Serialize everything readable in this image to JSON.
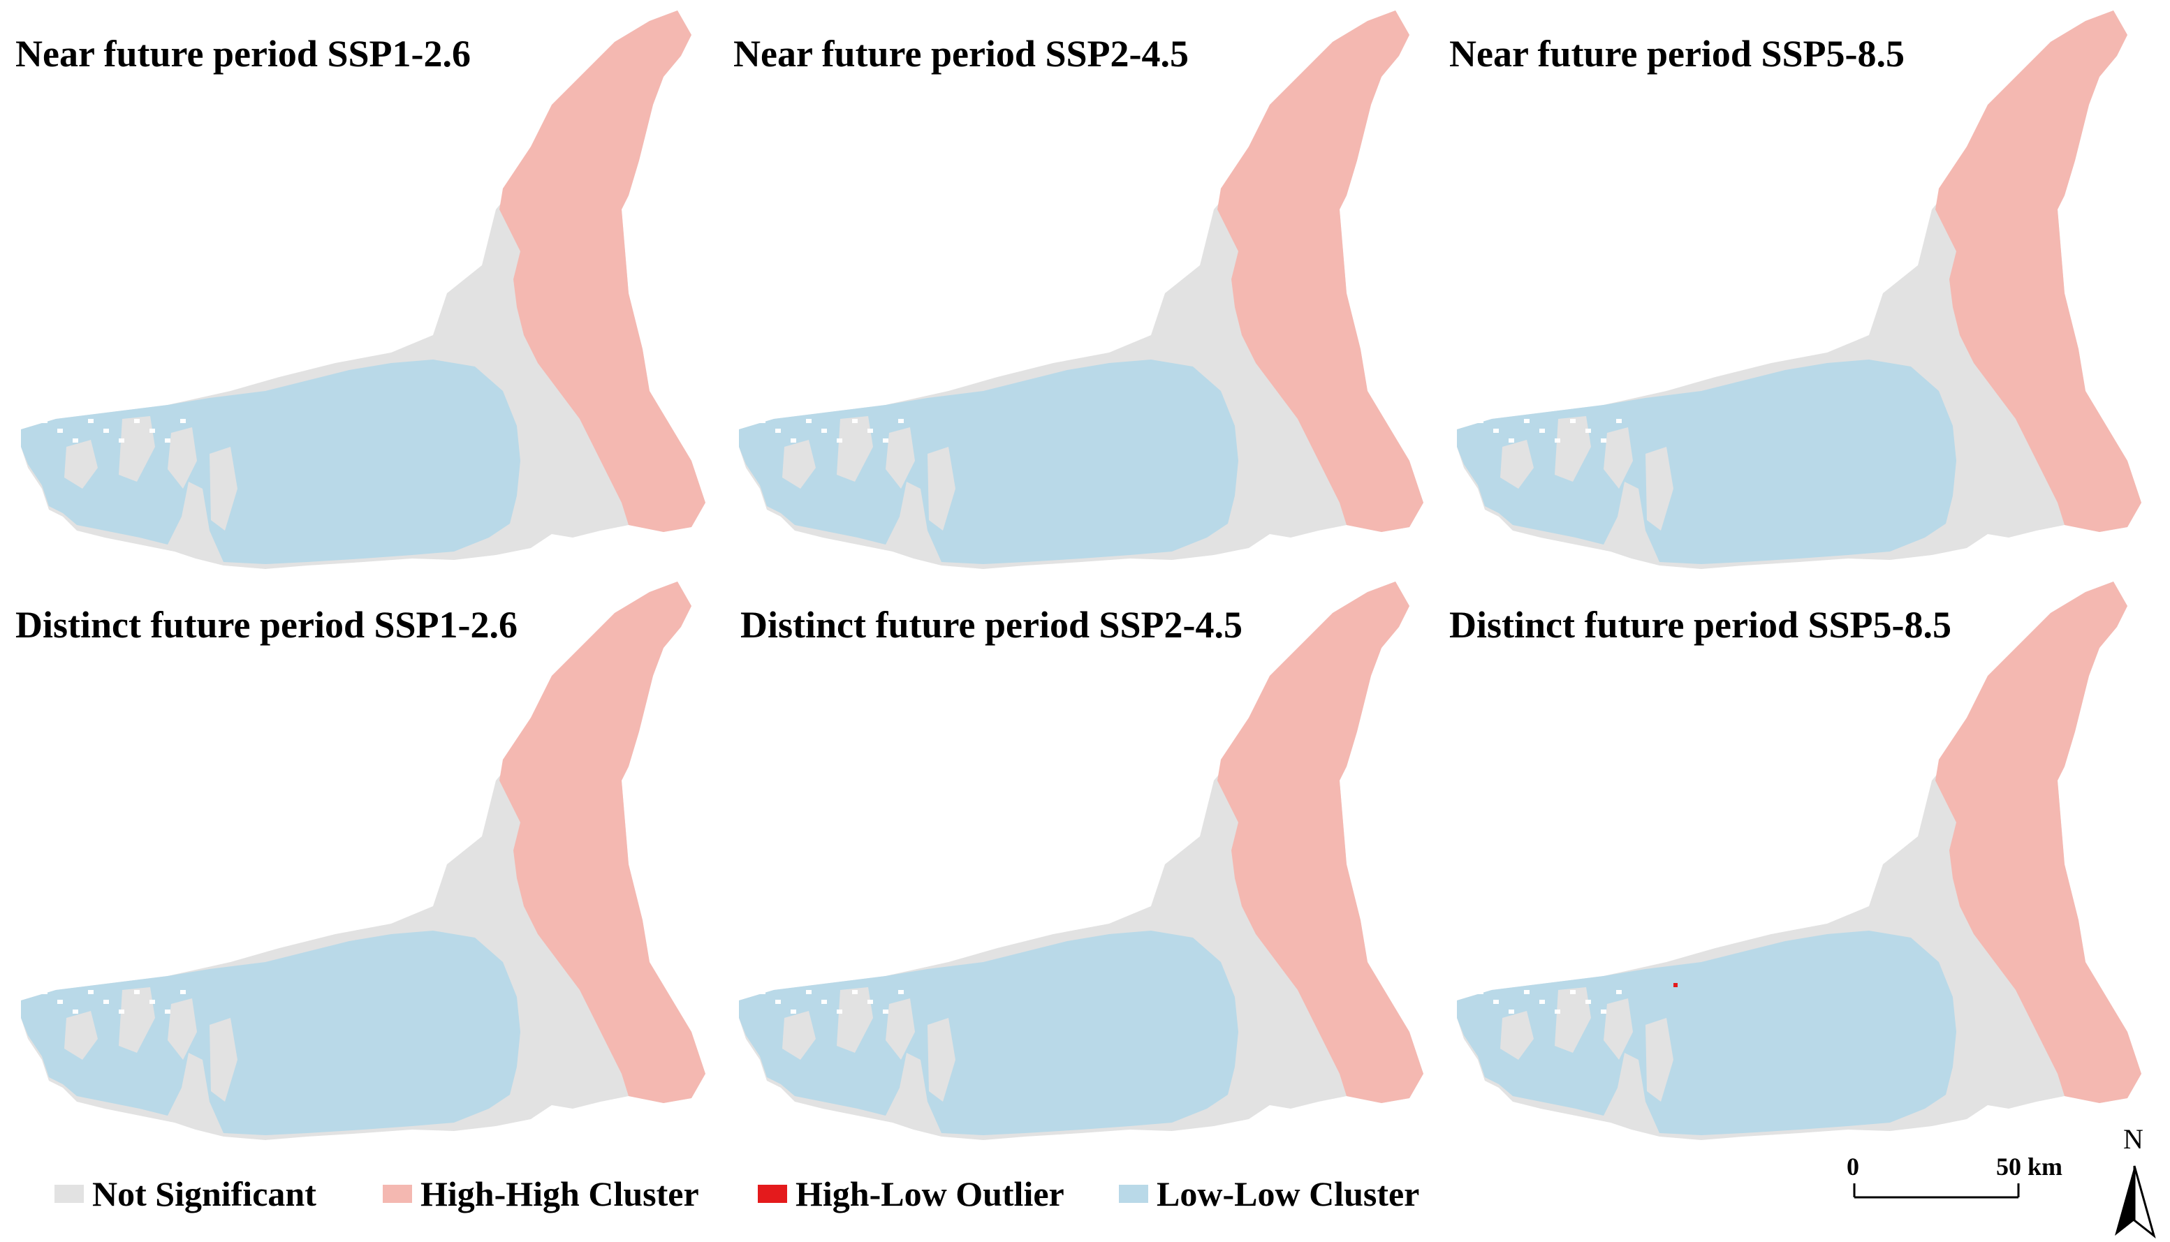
{
  "colors": {
    "not_significant": "#e2e2e2",
    "high_high_cluster": "#f4b8b1",
    "high_low_outlier": "#e41a1c",
    "low_low_cluster": "#b9d9e8"
  },
  "panels": [
    {
      "title": "Near future period SSP1-2.6"
    },
    {
      "title": "Near future period SSP2-4.5"
    },
    {
      "title": "Near future period SSP5-8.5"
    },
    {
      "title": "Distinct future period SSP1-2.6"
    },
    {
      "title": "Distinct future period SSP2-4.5"
    },
    {
      "title": "Distinct future period SSP5-8.5"
    }
  ],
  "legend": {
    "items": [
      {
        "label": "Not Significant",
        "color": "#e2e2e2"
      },
      {
        "label": "High-High Cluster",
        "color": "#f4b8b1"
      },
      {
        "label": "High-Low Outlier",
        "color": "#e41a1c"
      },
      {
        "label": "Low-Low Cluster",
        "color": "#b9d9e8"
      }
    ]
  },
  "scale_bar": {
    "start_label": "0",
    "end_label": "50 km"
  },
  "north_arrow": {
    "label": "N",
    "icon": "north-arrow-icon"
  }
}
